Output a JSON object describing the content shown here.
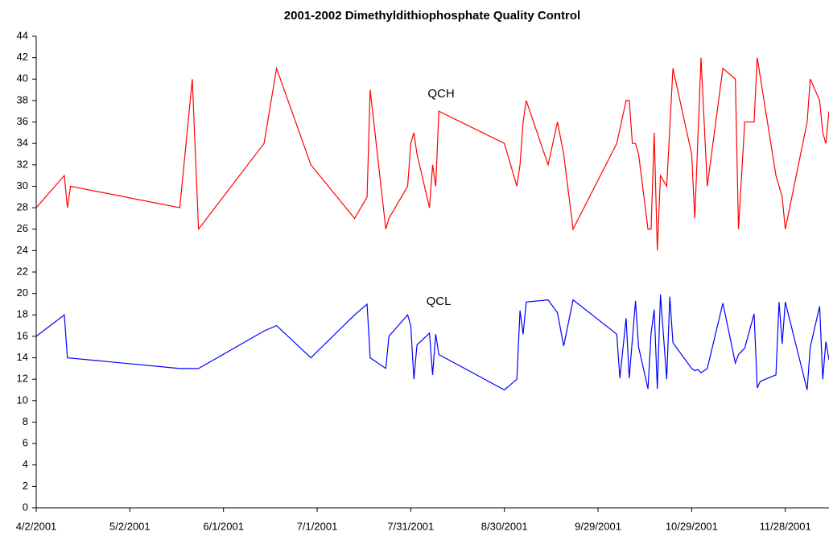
{
  "chart_data": {
    "type": "line",
    "title": "2001-2002 Dimethyldithiophosphate Quality Control",
    "annotations": [
      "QCH",
      "QCL"
    ],
    "xlim": [
      "2001-04-02",
      "2001-12-12"
    ],
    "xticks": [
      {
        "value": "2001-04-02",
        "label": "4/2/2001"
      },
      {
        "value": "2001-05-02",
        "label": "5/2/2001"
      },
      {
        "value": "2001-06-01",
        "label": "6/1/2001"
      },
      {
        "value": "2001-07-01",
        "label": "7/1/2001"
      },
      {
        "value": "2001-07-31",
        "label": "7/31/2001"
      },
      {
        "value": "2001-08-30",
        "label": "8/30/2001"
      },
      {
        "value": "2001-09-29",
        "label": "9/29/2001"
      },
      {
        "value": "2001-10-29",
        "label": "10/29/2001"
      },
      {
        "value": "2001-11-28",
        "label": "11/28/2001"
      }
    ],
    "ylim": [
      0,
      44
    ],
    "yticks": [
      0,
      2,
      4,
      6,
      8,
      10,
      12,
      14,
      16,
      18,
      20,
      22,
      24,
      26,
      28,
      30,
      32,
      34,
      36,
      38,
      40,
      42,
      44
    ],
    "grid": false,
    "series": [
      {
        "name": "QCH",
        "color": "#ff0000",
        "x": [
          "2001-04-02",
          "2001-04-11",
          "2001-04-12",
          "2001-04-13",
          "2001-05-18",
          "2001-05-22",
          "2001-05-24",
          "2001-06-14",
          "2001-06-18",
          "2001-06-29",
          "2001-07-13",
          "2001-07-17",
          "2001-07-18",
          "2001-07-23",
          "2001-07-24",
          "2001-07-30",
          "2001-07-31",
          "2001-08-01",
          "2001-08-02",
          "2001-08-06",
          "2001-08-07",
          "2001-08-08",
          "2001-08-09",
          "2001-08-30",
          "2001-09-03",
          "2001-09-04",
          "2001-09-05",
          "2001-09-06",
          "2001-09-13",
          "2001-09-16",
          "2001-09-18",
          "2001-09-21",
          "2001-10-05",
          "2001-10-08",
          "2001-10-09",
          "2001-10-10",
          "2001-10-11",
          "2001-10-12",
          "2001-10-15",
          "2001-10-16",
          "2001-10-17",
          "2001-10-18",
          "2001-10-19",
          "2001-10-21",
          "2001-10-23",
          "2001-10-29",
          "2001-10-30",
          "2001-11-01",
          "2001-11-03",
          "2001-11-08",
          "2001-11-12",
          "2001-11-13",
          "2001-11-15",
          "2001-11-18",
          "2001-11-19",
          "2001-11-25",
          "2001-11-27",
          "2001-11-28",
          "2001-12-05",
          "2001-12-06",
          "2001-12-09",
          "2001-12-10",
          "2001-12-11",
          "2001-12-12"
        ],
        "values": [
          28,
          31,
          28,
          30,
          28,
          40,
          26,
          34,
          41,
          32,
          27,
          29,
          39,
          26,
          27,
          30,
          34,
          35,
          33,
          28,
          32,
          30,
          37,
          34,
          30,
          32,
          36,
          38,
          32,
          36,
          33,
          26,
          34,
          38,
          38,
          34,
          34,
          33,
          26,
          26,
          35,
          24,
          31,
          30,
          41,
          33,
          27,
          42,
          30,
          41,
          40,
          26,
          36,
          36,
          42,
          31,
          29,
          26,
          36,
          40,
          38,
          35,
          34,
          37
        ]
      },
      {
        "name": "QCL",
        "color": "#0000ff",
        "x": [
          "2001-04-02",
          "2001-04-11",
          "2001-04-12",
          "2001-05-18",
          "2001-05-24",
          "2001-06-14",
          "2001-06-18",
          "2001-06-29",
          "2001-07-13",
          "2001-07-17",
          "2001-07-18",
          "2001-07-23",
          "2001-07-24",
          "2001-07-30",
          "2001-07-31",
          "2001-08-01",
          "2001-08-02",
          "2001-08-06",
          "2001-08-07",
          "2001-08-08",
          "2001-08-09",
          "2001-08-30",
          "2001-09-03",
          "2001-09-04",
          "2001-09-05",
          "2001-09-06",
          "2001-09-13",
          "2001-09-16",
          "2001-09-18",
          "2001-09-21",
          "2001-10-05",
          "2001-10-06",
          "2001-10-08",
          "2001-10-09",
          "2001-10-11",
          "2001-10-12",
          "2001-10-15",
          "2001-10-16",
          "2001-10-17",
          "2001-10-18",
          "2001-10-19",
          "2001-10-21",
          "2001-10-22",
          "2001-10-23",
          "2001-10-29",
          "2001-10-30",
          "2001-10-31",
          "2001-11-01",
          "2001-11-03",
          "2001-11-08",
          "2001-11-12",
          "2001-11-13",
          "2001-11-15",
          "2001-11-18",
          "2001-11-19",
          "2001-11-20",
          "2001-11-25",
          "2001-11-26",
          "2001-11-27",
          "2001-11-28",
          "2001-12-05",
          "2001-12-06",
          "2001-12-09",
          "2001-12-10",
          "2001-12-11",
          "2001-12-12"
        ],
        "values": [
          16,
          18,
          14,
          13,
          13,
          16.5,
          17,
          14,
          18,
          19,
          14,
          13,
          16,
          18,
          17,
          12,
          15.2,
          16.3,
          12.4,
          16.2,
          14.3,
          11,
          12,
          18.4,
          16.2,
          19.2,
          19.4,
          18.2,
          15.1,
          19.4,
          16.2,
          12.1,
          17.7,
          12.1,
          19.3,
          15,
          11.1,
          16.3,
          18.5,
          11.1,
          19.9,
          12,
          19.7,
          15.4,
          13,
          12.8,
          12.9,
          12.6,
          13,
          19.1,
          13.5,
          14.3,
          14.9,
          18.1,
          11.2,
          11.8,
          12.4,
          19.2,
          15.3,
          19.2,
          11,
          15,
          18.8,
          12,
          15.5,
          13.8
        ]
      }
    ]
  }
}
